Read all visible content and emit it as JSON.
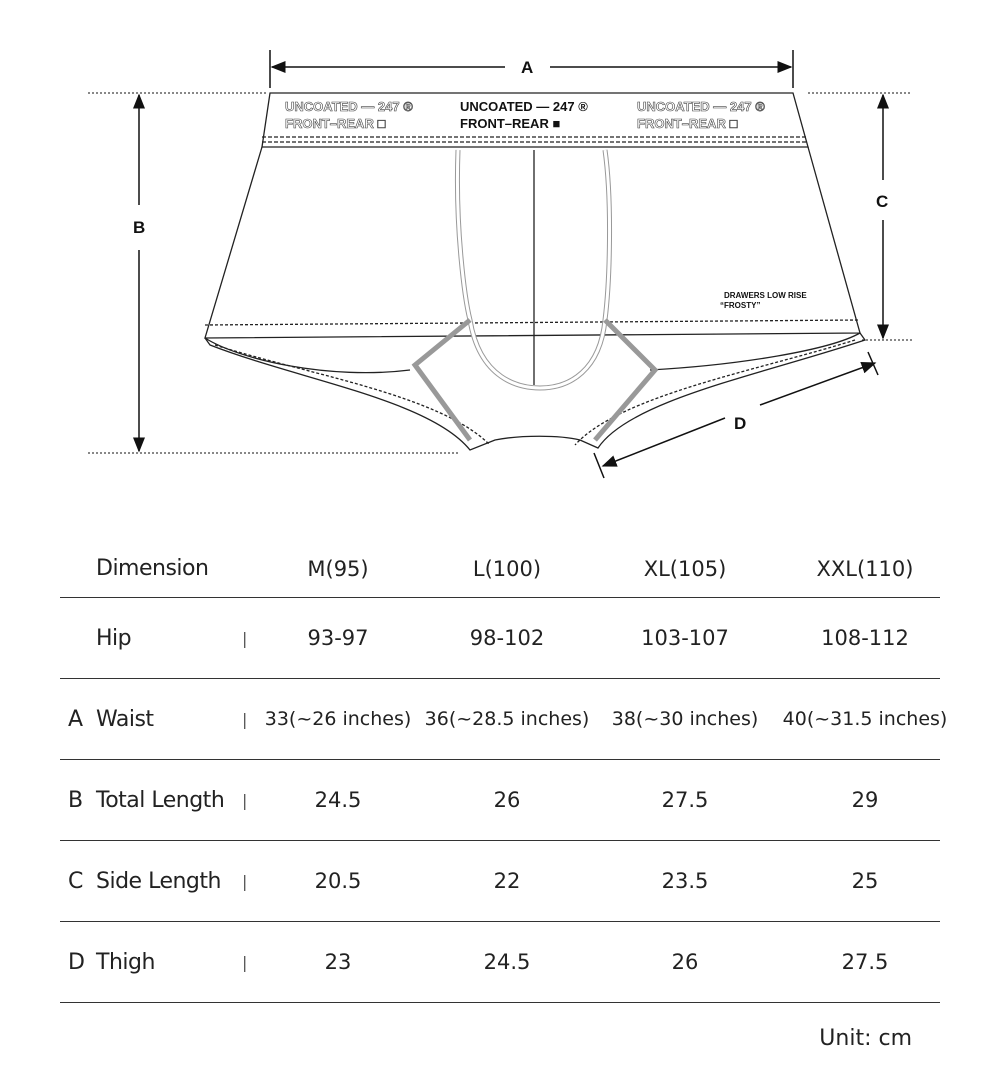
{
  "diagram": {
    "labels": {
      "A": "A",
      "B": "B",
      "C": "C",
      "D": "D"
    },
    "waistband_left": [
      "UNCOATED — 247 ®",
      "FRONT–REAR □"
    ],
    "waistband_center": [
      "UNCOATED — 247 ®",
      "FRONT–REAR ■"
    ],
    "waistband_right": [
      "UNCOATED — 247 ®",
      "FRONT–REAR □"
    ],
    "tag": [
      "DRAWERS LOW RISE",
      "“FROSTY”"
    ]
  },
  "table": {
    "header": {
      "label": "Dimension",
      "sizes": [
        "M(95)",
        "L(100)",
        "XL(105)",
        "XXL(110)"
      ]
    },
    "rows": [
      {
        "letter": "",
        "name": "Hip",
        "sep": "|",
        "values": [
          "93-97",
          "98-102",
          "103-107",
          "108-112"
        ]
      },
      {
        "letter": "A",
        "name": "Waist",
        "sep": "|",
        "values": [
          "33(~26 inches)",
          "36(~28.5 inches)",
          "38(~30 inches)",
          "40(~31.5 inches)"
        ]
      },
      {
        "letter": "B",
        "name": "Total Length",
        "sep": "|",
        "values": [
          "24.5",
          "26",
          "27.5",
          "29"
        ]
      },
      {
        "letter": "C",
        "name": "Side Length",
        "sep": "|",
        "values": [
          "20.5",
          "22",
          "23.5",
          "25"
        ]
      },
      {
        "letter": "D",
        "name": "Thigh",
        "sep": "|",
        "values": [
          "23",
          "24.5",
          "26",
          "27.5"
        ]
      }
    ]
  },
  "unit": "Unit: cm"
}
